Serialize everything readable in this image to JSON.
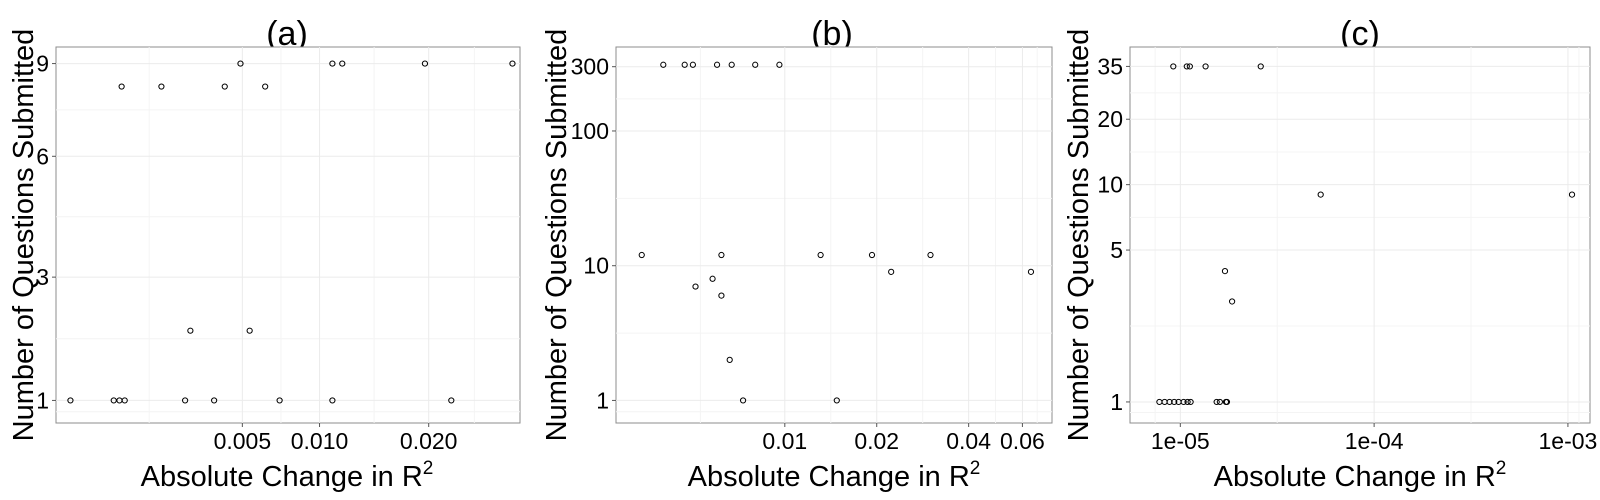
{
  "chart_data": [
    {
      "type": "scatter",
      "title": "(a)",
      "xlabel": "Absolute Change in R",
      "xlabel_sup": "2",
      "ylabel": "Number of Questions Submitted",
      "x_scale": "sqrt",
      "y_scale": "sqrt",
      "xlim": [
        0,
        0.031
      ],
      "ylim": [
        0.75,
        9.6
      ],
      "x_ticks": [
        0.005,
        0.01,
        0.02
      ],
      "x_tick_labels": [
        "0.005",
        "0.010",
        "0.020"
      ],
      "y_ticks": [
        1,
        3,
        6,
        9
      ],
      "y_tick_labels": [
        "1",
        "3",
        "6",
        "9"
      ],
      "grid": true,
      "points": [
        {
          "x": 3e-05,
          "y": 1
        },
        {
          "x": 0.00048,
          "y": 1
        },
        {
          "x": 0.00058,
          "y": 1
        },
        {
          "x": 0.00068,
          "y": 1
        },
        {
          "x": 0.0024,
          "y": 1
        },
        {
          "x": 0.0036,
          "y": 1
        },
        {
          "x": 0.0072,
          "y": 1
        },
        {
          "x": 0.011,
          "y": 1
        },
        {
          "x": 0.0225,
          "y": 1
        },
        {
          "x": 0.0026,
          "y": 2
        },
        {
          "x": 0.0054,
          "y": 2
        },
        {
          "x": 0.00062,
          "y": 8.2
        },
        {
          "x": 0.0016,
          "y": 8.2
        },
        {
          "x": 0.0041,
          "y": 8.2
        },
        {
          "x": 0.0063,
          "y": 8.2
        },
        {
          "x": 0.0049,
          "y": 9
        },
        {
          "x": 0.011,
          "y": 9
        },
        {
          "x": 0.0118,
          "y": 9
        },
        {
          "x": 0.0196,
          "y": 9
        },
        {
          "x": 0.03,
          "y": 9
        }
      ]
    },
    {
      "type": "scatter",
      "title": "(b)",
      "xlabel": "Absolute Change in R",
      "xlabel_sup": "2",
      "ylabel": "Number of Questions Submitted",
      "x_scale": "log",
      "y_scale": "log",
      "xlim": [
        0.0028,
        0.075
      ],
      "ylim": [
        0.68,
        420
      ],
      "x_ticks": [
        0.01,
        0.02,
        0.04,
        0.06
      ],
      "x_tick_labels": [
        "0.01",
        "0.02",
        "0.04",
        "0.06"
      ],
      "y_ticks": [
        1,
        10,
        100,
        300
      ],
      "y_tick_labels": [
        "1",
        "10",
        "100",
        "300"
      ],
      "grid": true,
      "points": [
        {
          "x": 0.004,
          "y": 310
        },
        {
          "x": 0.0047,
          "y": 310
        },
        {
          "x": 0.005,
          "y": 310
        },
        {
          "x": 0.006,
          "y": 310
        },
        {
          "x": 0.0067,
          "y": 310
        },
        {
          "x": 0.008,
          "y": 310
        },
        {
          "x": 0.0096,
          "y": 310
        },
        {
          "x": 0.0034,
          "y": 12
        },
        {
          "x": 0.0062,
          "y": 12
        },
        {
          "x": 0.0131,
          "y": 12
        },
        {
          "x": 0.0193,
          "y": 12
        },
        {
          "x": 0.03,
          "y": 12
        },
        {
          "x": 0.0223,
          "y": 9
        },
        {
          "x": 0.064,
          "y": 9
        },
        {
          "x": 0.0058,
          "y": 8
        },
        {
          "x": 0.0051,
          "y": 7
        },
        {
          "x": 0.0062,
          "y": 6
        },
        {
          "x": 0.0066,
          "y": 2
        },
        {
          "x": 0.0073,
          "y": 1
        },
        {
          "x": 0.0148,
          "y": 1
        }
      ]
    },
    {
      "type": "scatter",
      "title": "(c)",
      "xlabel": "Absolute Change in R",
      "xlabel_sup": "2",
      "ylabel": "Number of Questions Submitted",
      "x_scale": "log",
      "y_scale": "log",
      "xlim": [
        5.5e-06,
        0.0013
      ],
      "ylim": [
        0.8,
        43
      ],
      "x_ticks": [
        1e-05,
        0.0001,
        0.001
      ],
      "x_tick_labels": [
        "1e-05",
        "1e-04",
        "1e-03"
      ],
      "y_ticks": [
        1,
        5,
        10,
        20,
        35
      ],
      "y_tick_labels": [
        "1",
        "5",
        "10",
        "20",
        "35"
      ],
      "grid": true,
      "points": [
        {
          "x": 7.8e-06,
          "y": 1
        },
        {
          "x": 8.3e-06,
          "y": 1
        },
        {
          "x": 8.8e-06,
          "y": 1
        },
        {
          "x": 9.3e-06,
          "y": 1
        },
        {
          "x": 9.8e-06,
          "y": 1
        },
        {
          "x": 1.04e-05,
          "y": 1
        },
        {
          "x": 1.09e-05,
          "y": 1
        },
        {
          "x": 1.13e-05,
          "y": 1
        },
        {
          "x": 1.54e-05,
          "y": 1
        },
        {
          "x": 1.6e-05,
          "y": 1
        },
        {
          "x": 1.72e-05,
          "y": 1
        },
        {
          "x": 1.74e-05,
          "y": 1
        },
        {
          "x": 9.2e-06,
          "y": 35
        },
        {
          "x": 1.08e-05,
          "y": 35
        },
        {
          "x": 1.12e-05,
          "y": 35
        },
        {
          "x": 1.35e-05,
          "y": 35
        },
        {
          "x": 2.6e-05,
          "y": 35
        },
        {
          "x": 5.3e-05,
          "y": 9
        },
        {
          "x": 0.00105,
          "y": 9
        },
        {
          "x": 1.7e-05,
          "y": 4
        },
        {
          "x": 1.85e-05,
          "y": 2.9
        }
      ]
    }
  ]
}
